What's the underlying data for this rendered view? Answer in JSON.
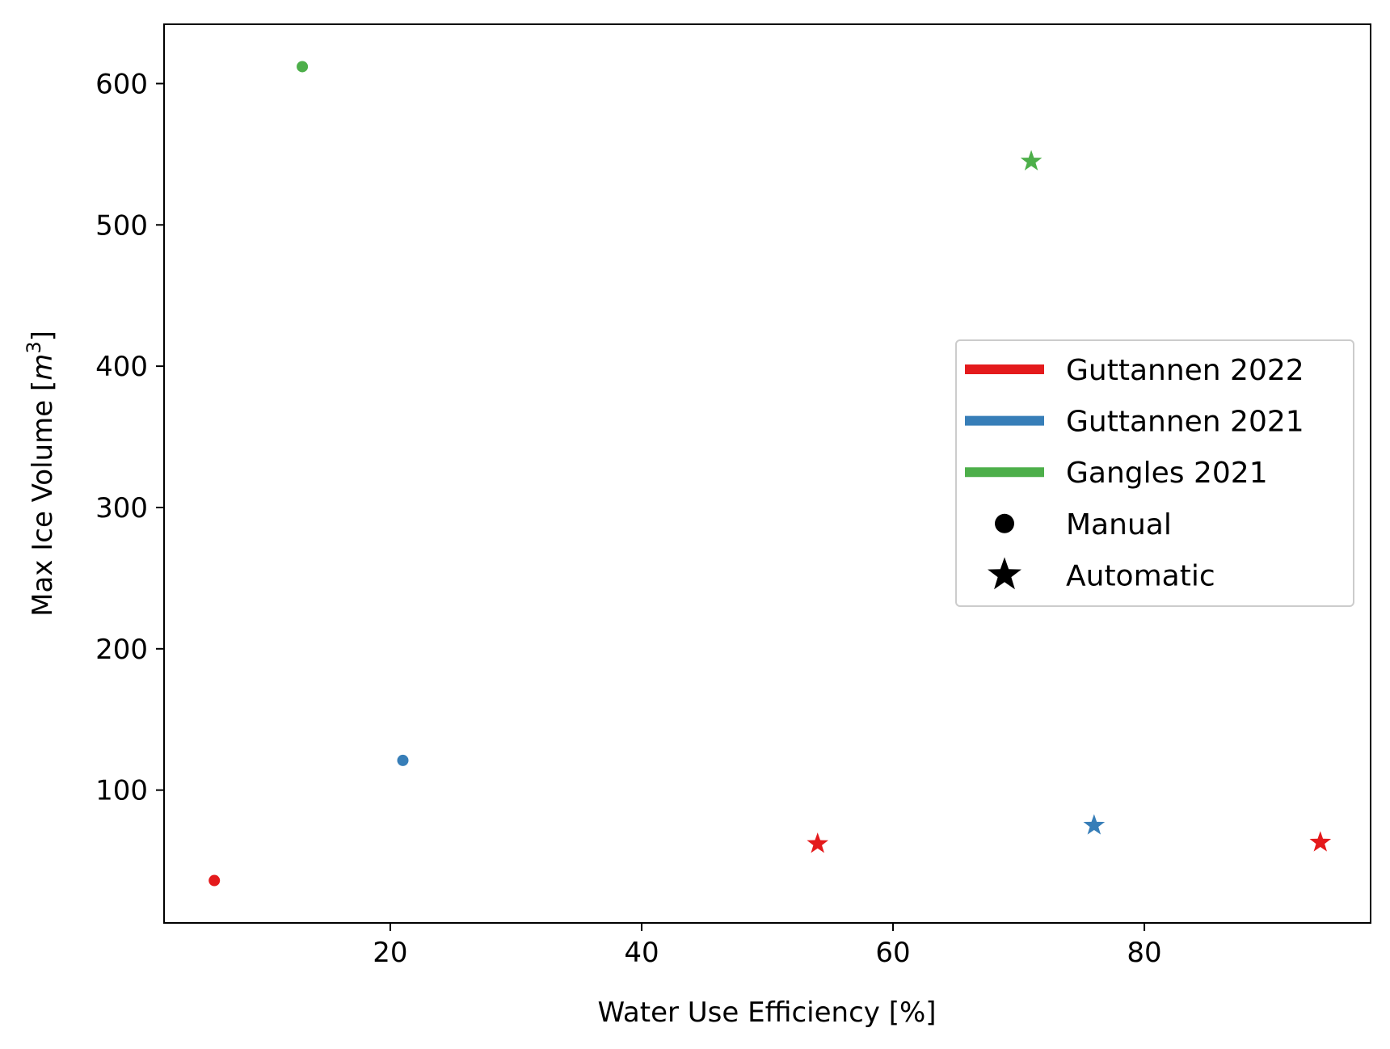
{
  "chart_data": {
    "type": "scatter",
    "xlabel": "Water Use Efficiency [%]",
    "ylabel_main": "Max Ice Volume [",
    "ylabel_unit": "m",
    "ylabel_exp": "3",
    "ylabel_end": "]",
    "xlim": [
      2,
      98
    ],
    "ylim": [
      6,
      642
    ],
    "xticks": [
      20,
      40,
      60,
      80
    ],
    "yticks": [
      100,
      200,
      300,
      400,
      500,
      600
    ],
    "series": [
      {
        "name": "Guttannen 2022",
        "color": "#e41a1c",
        "points": [
          {
            "x": 6,
            "y": 36,
            "marker": "circle"
          },
          {
            "x": 54,
            "y": 62,
            "marker": "star"
          },
          {
            "x": 94,
            "y": 63,
            "marker": "star"
          }
        ]
      },
      {
        "name": "Guttannen 2021",
        "color": "#377eb8",
        "points": [
          {
            "x": 21,
            "y": 121,
            "marker": "circle"
          },
          {
            "x": 76,
            "y": 75,
            "marker": "star"
          }
        ]
      },
      {
        "name": "Gangles 2021",
        "color": "#4daf4a",
        "points": [
          {
            "x": 13,
            "y": 612,
            "marker": "circle"
          },
          {
            "x": 71,
            "y": 545,
            "marker": "star"
          }
        ]
      }
    ],
    "legend": {
      "placement": "center-right",
      "markers": [
        {
          "label": "Manual",
          "marker": "circle",
          "color": "#000000"
        },
        {
          "label": "Automatic",
          "marker": "star",
          "color": "#000000"
        }
      ]
    }
  }
}
